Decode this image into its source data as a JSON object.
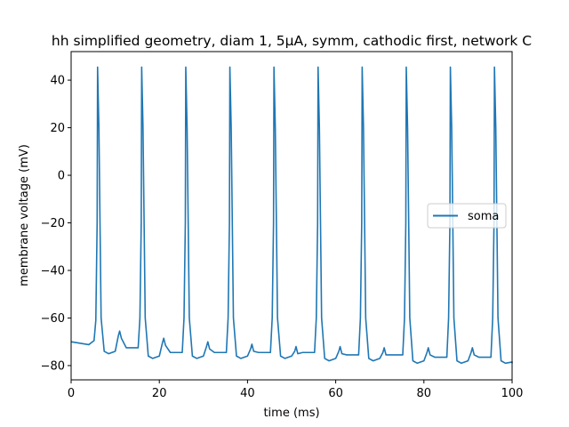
{
  "chart_data": {
    "type": "line",
    "title": "hh simplified geometry, diam 1, 5µA, symm, cathodic first, network C",
    "xlabel": "time (ms)",
    "ylabel": "membrane voltage (mV)",
    "xlim": [
      0,
      100
    ],
    "ylim": [
      -86,
      52
    ],
    "xticks": [
      0,
      20,
      40,
      60,
      80,
      100
    ],
    "yticks": [
      -80,
      -60,
      -40,
      -20,
      0,
      20,
      40
    ],
    "grid": false,
    "legend_position": "center-right",
    "series": [
      {
        "name": "soma",
        "color": "#1f77b4",
        "spike_times_ms": [
          6.0,
          16.0,
          26.0,
          36.0,
          46.0,
          56.0,
          66.0,
          76.0,
          86.0,
          96.0
        ],
        "spike_peak_mv": 45.5,
        "after_trough_mv": [
          -75,
          -77,
          -77,
          -77,
          -77,
          -78,
          -78,
          -79,
          -79,
          -79
        ],
        "rebound_peak_mv": [
          -65.5,
          -68.5,
          -70,
          -71,
          -72,
          -72,
          -72.5,
          -72.5,
          -72.5
        ],
        "x": [
          0,
          2,
          4,
          5.2,
          5.6,
          5.9,
          6.0,
          6.3,
          6.8,
          7.5,
          8.5,
          10.0,
          10.7,
          11.0,
          11.4,
          12.5,
          15.0,
          15.6,
          15.9,
          16.0
        ],
        "y": [
          -70,
          -70.6,
          -71.2,
          -69.5,
          -61,
          -20,
          45.5,
          20,
          -60,
          -74,
          -75,
          -74,
          -67,
          -65.5,
          -68,
          -72.5,
          -73.5,
          -60,
          -20,
          45.5
        ]
      }
    ]
  }
}
